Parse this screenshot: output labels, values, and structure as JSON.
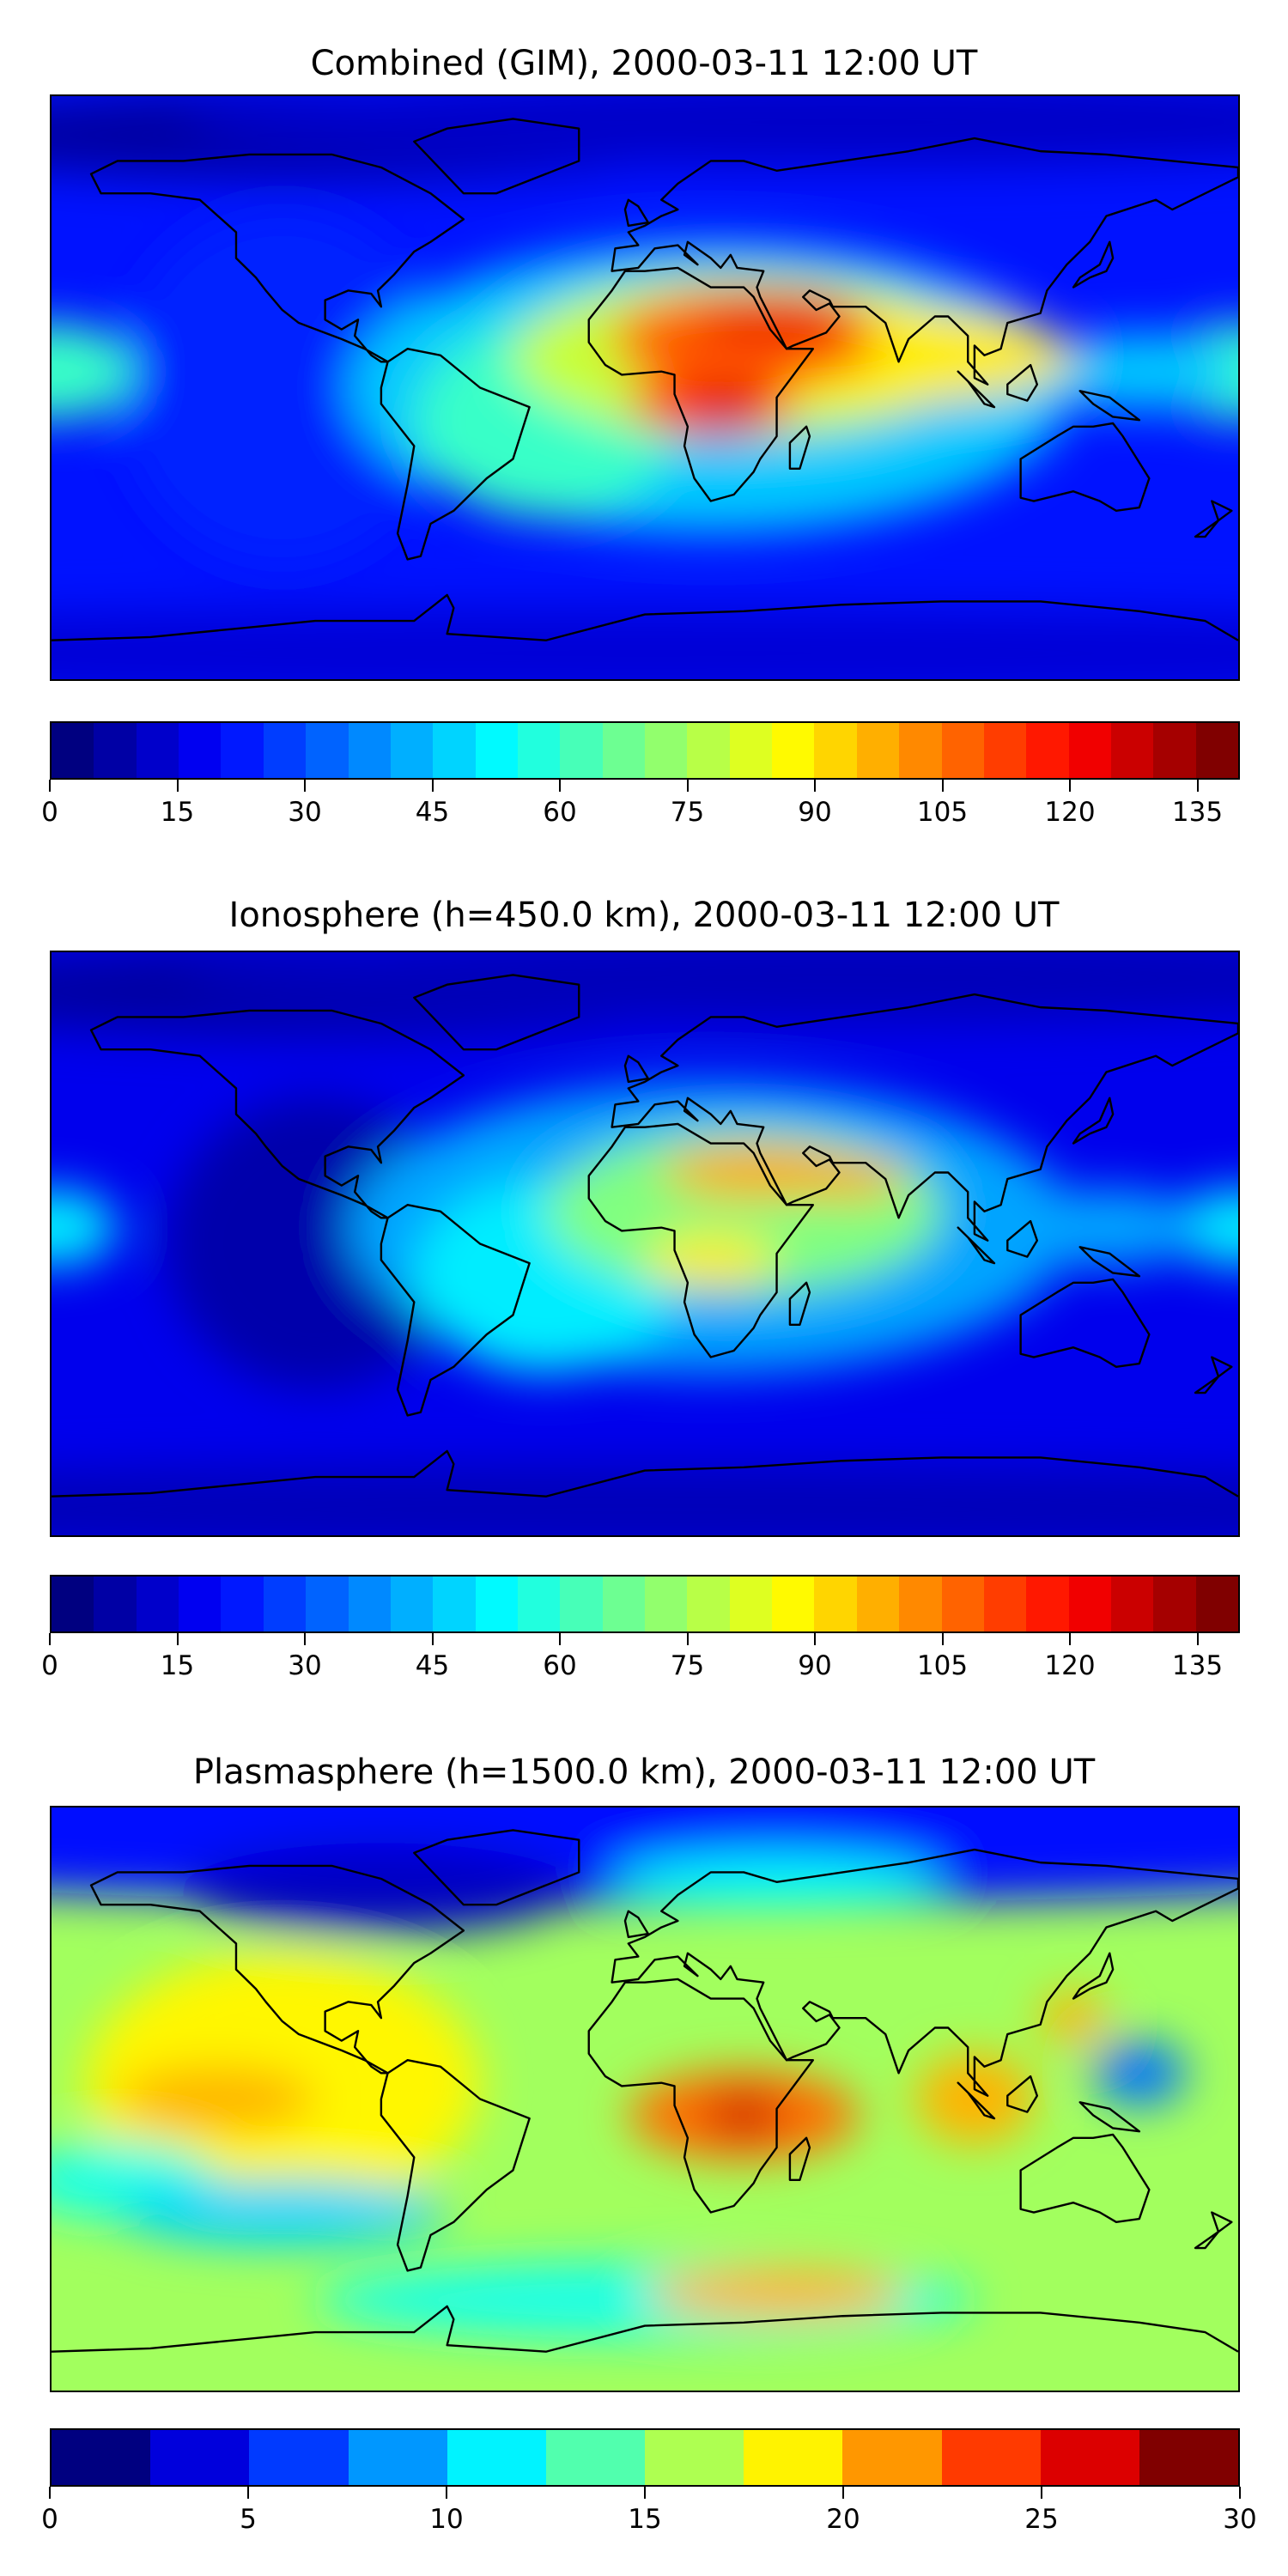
{
  "chart_data": [
    {
      "type": "heatmap",
      "title": "Combined (GIM), 2000-03-11 12:00 UT",
      "projection": "plate-carree world map with coastlines",
      "colormap": "jet",
      "levels": {
        "min": 0,
        "max": 140,
        "step": 5
      },
      "colorbar_ticks": [
        "0",
        "15",
        "30",
        "45",
        "60",
        "75",
        "90",
        "105",
        "120",
        "135"
      ],
      "colorbar_tick_values": [
        0,
        15,
        30,
        45,
        60,
        75,
        90,
        105,
        120,
        135
      ],
      "colorbar_placement": "bottom",
      "background_value": 20,
      "features": [
        {
          "lon": -100,
          "lat": 78,
          "rlon": 130,
          "rlat": 14,
          "value": 5
        },
        {
          "lon": 60,
          "lat": 82,
          "rlon": 200,
          "rlat": 14,
          "value": 10
        },
        {
          "lon": 0,
          "lat": -82,
          "rlon": 360,
          "rlat": 14,
          "value": 12
        },
        {
          "lon": -110,
          "lat": 0,
          "rlon": 50,
          "rlat": 55,
          "value": 22
        },
        {
          "lon": -180,
          "lat": 5,
          "rlon": 25,
          "rlat": 15,
          "value": 60
        },
        {
          "lon": 180,
          "lat": 5,
          "rlon": 25,
          "rlat": 15,
          "value": 60
        },
        {
          "lon": 20,
          "lat": 0,
          "rlon": 110,
          "rlat": 45,
          "value": 45
        },
        {
          "lon": 150,
          "lat": 5,
          "rlon": 30,
          "rlat": 12,
          "value": 45
        },
        {
          "lon": -30,
          "lat": -10,
          "rlon": 40,
          "rlat": 30,
          "value": 60
        },
        {
          "lon": 30,
          "lat": 10,
          "rlon": 70,
          "rlat": 25,
          "value": 80
        },
        {
          "lon": 70,
          "lat": 10,
          "rlon": 60,
          "rlat": 15,
          "value": 90
        },
        {
          "lon": 30,
          "lat": 15,
          "rlon": 40,
          "rlat": 15,
          "value": 110
        },
        {
          "lon": 20,
          "lat": -5,
          "rlon": 25,
          "rlat": 10,
          "value": 115
        },
        {
          "lon": 40,
          "lat": 22,
          "rlon": 25,
          "rlat": 8,
          "value": 125
        },
        {
          "lon": 25,
          "lat": -6,
          "rlon": 10,
          "rlat": 5,
          "value": 130
        }
      ]
    },
    {
      "type": "heatmap",
      "title": "Ionosphere  (h=450.0 km), 2000-03-11 12:00 UT",
      "projection": "plate-carree world map with coastlines",
      "colormap": "jet",
      "levels": {
        "min": 0,
        "max": 140,
        "step": 5
      },
      "colorbar_ticks": [
        "0",
        "15",
        "30",
        "45",
        "60",
        "75",
        "90",
        "105",
        "120",
        "135"
      ],
      "colorbar_tick_values": [
        0,
        15,
        30,
        45,
        60,
        75,
        90,
        105,
        120,
        135
      ],
      "colorbar_placement": "bottom",
      "background_value": 15,
      "features": [
        {
          "lon": -100,
          "lat": 78,
          "rlon": 130,
          "rlat": 14,
          "value": 5
        },
        {
          "lon": 60,
          "lat": 82,
          "rlon": 200,
          "rlat": 14,
          "value": 8
        },
        {
          "lon": 0,
          "lat": -82,
          "rlon": 360,
          "rlat": 14,
          "value": 8
        },
        {
          "lon": -100,
          "lat": 0,
          "rlon": 45,
          "rlat": 45,
          "value": 6
        },
        {
          "lon": -180,
          "lat": 5,
          "rlon": 20,
          "rlat": 12,
          "value": 50
        },
        {
          "lon": 180,
          "lat": 5,
          "rlon": 20,
          "rlat": 12,
          "value": 50
        },
        {
          "lon": 20,
          "lat": 5,
          "rlon": 110,
          "rlat": 45,
          "value": 40
        },
        {
          "lon": 140,
          "lat": 5,
          "rlon": 30,
          "rlat": 12,
          "value": 40
        },
        {
          "lon": -30,
          "lat": -10,
          "rlon": 40,
          "rlat": 30,
          "value": 50
        },
        {
          "lon": 30,
          "lat": 10,
          "rlon": 60,
          "rlat": 25,
          "value": 70
        },
        {
          "lon": 20,
          "lat": -5,
          "rlon": 20,
          "rlat": 8,
          "value": 90
        },
        {
          "lon": 35,
          "lat": 22,
          "rlon": 30,
          "rlat": 8,
          "value": 100
        },
        {
          "lon": 60,
          "lat": 20,
          "rlon": 20,
          "rlat": 6,
          "value": 100
        }
      ]
    },
    {
      "type": "heatmap",
      "title": "Plasmasphere (h=1500.0 km), 2000-03-11 12:00 UT",
      "projection": "plate-carree world map with coastlines",
      "colormap": "jet",
      "levels": {
        "min": 0,
        "max": 30,
        "step": 2.5
      },
      "colorbar_ticks": [
        "0",
        "5",
        "10",
        "15",
        "20",
        "25",
        "30"
      ],
      "colorbar_tick_values": [
        0,
        5,
        10,
        15,
        20,
        25,
        30
      ],
      "colorbar_placement": "bottom",
      "background_value": 16,
      "features": [
        {
          "lon": 0,
          "lat": 88,
          "rlon": 360,
          "rlat": 28,
          "value": 4
        },
        {
          "lon": -80,
          "lat": 65,
          "rlon": 60,
          "rlat": 14,
          "value": 2
        },
        {
          "lon": 40,
          "lat": 68,
          "rlon": 50,
          "rlat": 8,
          "value": 11
        },
        {
          "lon": -110,
          "lat": 5,
          "rlon": 60,
          "rlat": 40,
          "value": 19
        },
        {
          "lon": -130,
          "lat": 0,
          "rlon": 30,
          "rlat": 10,
          "value": 21
        },
        {
          "lon": -160,
          "lat": -25,
          "rlon": 30,
          "rlat": 12,
          "value": 12
        },
        {
          "lon": -110,
          "lat": -35,
          "rlon": 50,
          "rlat": 10,
          "value": 10
        },
        {
          "lon": 0,
          "lat": -62,
          "rlon": 100,
          "rlat": 12,
          "value": 12
        },
        {
          "lon": 40,
          "lat": -60,
          "rlon": 40,
          "rlat": 8,
          "value": 21
        },
        {
          "lon": 30,
          "lat": -5,
          "rlon": 35,
          "rlat": 14,
          "value": 23
        },
        {
          "lon": 30,
          "lat": -5,
          "rlon": 12,
          "rlat": 6,
          "value": 28
        },
        {
          "lon": 100,
          "lat": 0,
          "rlon": 18,
          "rlat": 14,
          "value": 21
        },
        {
          "lon": 150,
          "lat": 8,
          "rlon": 14,
          "rlat": 10,
          "value": 7
        },
        {
          "lon": 130,
          "lat": 25,
          "rlon": 10,
          "rlat": 8,
          "value": 21
        }
      ]
    }
  ]
}
